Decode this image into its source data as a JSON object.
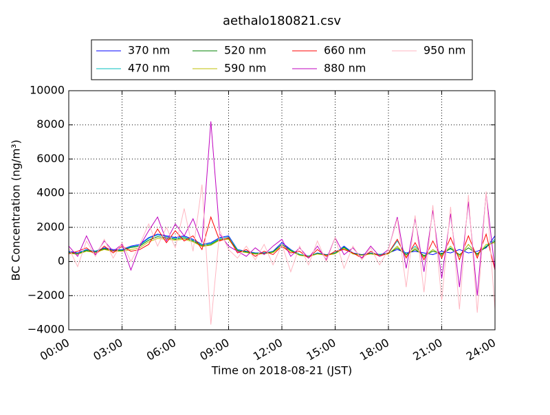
{
  "chart_data": {
    "type": "line",
    "title": "aethalo180821.csv",
    "xlabel": "Time on 2018-08-21 (JST)",
    "ylabel": "BC Concentration (ng/m³)",
    "x": [
      0,
      0.5,
      1,
      1.5,
      2,
      2.5,
      3,
      3.5,
      4,
      4.5,
      5,
      5.5,
      6,
      6.5,
      7,
      7.5,
      8,
      8.5,
      9,
      9.5,
      10,
      10.5,
      11,
      11.5,
      12,
      12.5,
      13,
      13.5,
      14,
      14.5,
      15,
      15.5,
      16,
      16.5,
      17,
      17.5,
      18,
      18.5,
      19,
      19.5,
      20,
      20.5,
      21,
      21.5,
      22,
      22.5,
      23,
      23.5,
      24
    ],
    "series": [
      {
        "name": "370 nm",
        "color": "#0000ff",
        "values": [
          600,
          500,
          700,
          600,
          800,
          700,
          700,
          900,
          1000,
          1400,
          1600,
          1500,
          1400,
          1500,
          1300,
          1000,
          1100,
          1400,
          1500,
          700,
          600,
          500,
          500,
          600,
          1100,
          700,
          400,
          300,
          500,
          400,
          500,
          900,
          500,
          400,
          500,
          400,
          500,
          700,
          500,
          600,
          500,
          400,
          600,
          500,
          700,
          500,
          600,
          800,
          1500
        ]
      },
      {
        "name": "470 nm",
        "color": "#00bfbf",
        "values": [
          550,
          480,
          680,
          620,
          760,
          650,
          680,
          850,
          950,
          1350,
          1550,
          1450,
          1350,
          1450,
          1250,
          980,
          1050,
          1350,
          1450,
          680,
          580,
          480,
          520,
          580,
          1000,
          680,
          420,
          320,
          480,
          380,
          520,
          850,
          480,
          380,
          480,
          420,
          480,
          1200,
          400,
          900,
          300,
          700,
          400,
          800,
          300,
          1000,
          400,
          900,
          1300
        ]
      },
      {
        "name": "520 nm",
        "color": "#008000",
        "values": [
          520,
          450,
          640,
          560,
          740,
          640,
          640,
          820,
          900,
          1250,
          1450,
          1380,
          1300,
          1380,
          1200,
          920,
          1000,
          1300,
          1350,
          640,
          560,
          460,
          470,
          560,
          1000,
          640,
          380,
          300,
          460,
          380,
          470,
          820,
          470,
          380,
          460,
          380,
          460,
          800,
          400,
          700,
          350,
          600,
          450,
          750,
          400,
          800,
          450,
          850,
          1200
        ]
      },
      {
        "name": "590 nm",
        "color": "#bfbf00",
        "values": [
          480,
          420,
          600,
          520,
          700,
          600,
          600,
          700,
          800,
          1150,
          1350,
          1300,
          1250,
          1300,
          1150,
          880,
          950,
          1250,
          1300,
          600,
          520,
          430,
          450,
          520,
          900,
          600,
          360,
          280,
          440,
          360,
          450,
          780,
          440,
          360,
          440,
          360,
          440,
          900,
          300,
          800,
          250,
          700,
          350,
          900,
          300,
          1000,
          350,
          1000,
          1100
        ]
      },
      {
        "name": "660 nm",
        "color": "#ff0000",
        "values": [
          450,
          600,
          800,
          400,
          900,
          500,
          900,
          600,
          700,
          1000,
          1900,
          1100,
          1800,
          1200,
          1500,
          700,
          2600,
          1200,
          1400,
          500,
          700,
          300,
          600,
          400,
          900,
          500,
          600,
          200,
          700,
          300,
          600,
          700,
          500,
          200,
          600,
          300,
          500,
          1300,
          200,
          1100,
          100,
          1200,
          200,
          1400,
          100,
          1500,
          200,
          1600,
          -500
        ]
      },
      {
        "name": "880 nm",
        "color": "#bf00bf",
        "values": [
          900,
          300,
          1500,
          400,
          1200,
          600,
          1000,
          -500,
          900,
          1800,
          2600,
          1200,
          2200,
          1500,
          2500,
          1100,
          8200,
          1600,
          900,
          600,
          300,
          800,
          400,
          900,
          1300,
          300,
          800,
          200,
          900,
          100,
          1400,
          400,
          800,
          200,
          900,
          300,
          700,
          2600,
          -400,
          2500,
          -600,
          3000,
          -1000,
          2800,
          -1500,
          3500,
          -2000,
          4000,
          -500
        ]
      },
      {
        "name": "950 nm",
        "color": "#ffb6c1",
        "values": [
          800,
          -300,
          1200,
          300,
          1300,
          200,
          1100,
          0,
          1000,
          2200,
          900,
          2000,
          800,
          3100,
          600,
          4500,
          -3700,
          1800,
          700,
          200,
          900,
          100,
          1000,
          -200,
          1000,
          -600,
          900,
          -200,
          1200,
          0,
          1400,
          -400,
          900,
          100,
          800,
          -200,
          700,
          2500,
          -1500,
          2700,
          -1800,
          3300,
          -2300,
          3200,
          -2800,
          3900,
          -3000,
          4100,
          -2800
        ]
      }
    ],
    "xlim": [
      0,
      24
    ],
    "xticks": [
      {
        "value": 0,
        "label": "00:00"
      },
      {
        "value": 3,
        "label": "03:00"
      },
      {
        "value": 6,
        "label": "06:00"
      },
      {
        "value": 9,
        "label": "09:00"
      },
      {
        "value": 12,
        "label": "12:00"
      },
      {
        "value": 15,
        "label": "15:00"
      },
      {
        "value": 18,
        "label": "18:00"
      },
      {
        "value": 21,
        "label": "21:00"
      },
      {
        "value": 24,
        "label": "24:00"
      }
    ],
    "ylim": [
      -4000,
      10000
    ],
    "yticks": [
      {
        "value": -4000,
        "label": "−4000"
      },
      {
        "value": -2000,
        "label": "−2000"
      },
      0,
      2000,
      4000,
      6000,
      8000,
      10000
    ],
    "grid": true,
    "legend": "upper center"
  }
}
